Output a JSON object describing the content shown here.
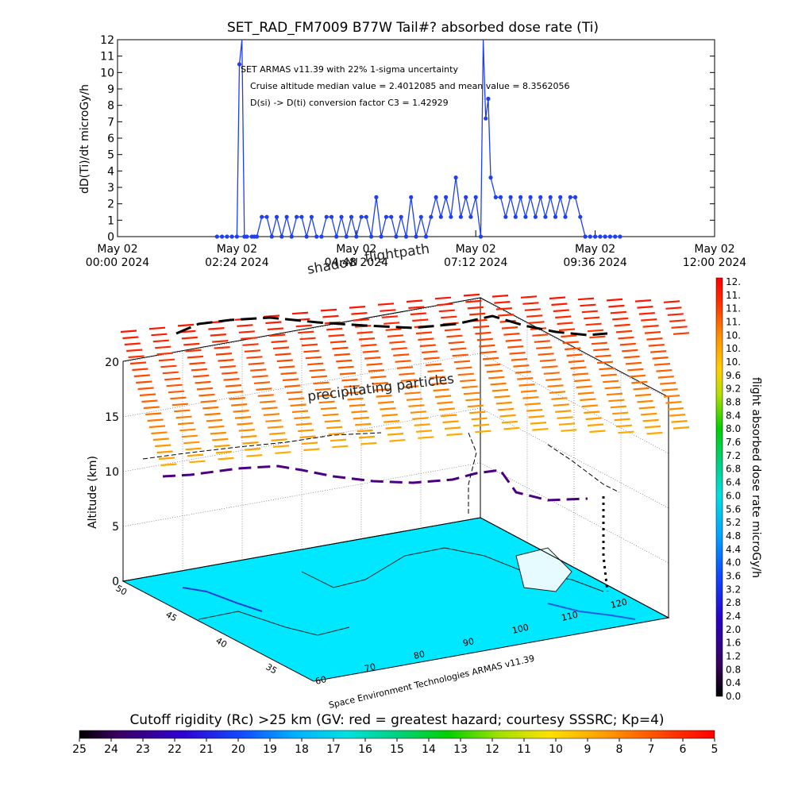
{
  "chart_data": [
    {
      "type": "line",
      "title": "SET_RAD_FM7009  B77W Tail#? absorbed dose rate (Ti)",
      "ylabel": "dD(Ti)/dt microGy/h",
      "ylim": [
        0,
        12
      ],
      "yticks": [
        "0",
        "1",
        "2",
        "3",
        "4",
        "5",
        "6",
        "7",
        "8",
        "9",
        "10",
        "11",
        "12"
      ],
      "xlim_hours": [
        0,
        12
      ],
      "xticks": [
        {
          "line1": "May 02",
          "line2": "00:00 2024"
        },
        {
          "line1": "May 02",
          "line2": "02:24 2024"
        },
        {
          "line1": "May 02",
          "line2": "04:48 2024"
        },
        {
          "line1": "May 02",
          "line2": "07:12 2024"
        },
        {
          "line1": "May 02",
          "line2": "09:36 2024"
        },
        {
          "line1": "May 02",
          "line2": "12:00 2024"
        }
      ],
      "annotations": [
        "SET ARMAS v11.39 with 22% 1-sigma uncertainty",
        "Cruise altitude median value = 2.4012085 and mean value = 8.3562056",
        "D(si) -> D(ti) conversion factor C3 = 1.42929"
      ],
      "series": [
        {
          "color": "#1f3ff0",
          "x_hours": [
            2.0,
            2.1,
            2.2,
            2.3,
            2.4,
            2.45,
            2.5,
            2.55,
            2.6,
            2.7,
            2.75,
            2.8,
            2.9,
            3.0,
            3.1,
            3.2,
            3.3,
            3.4,
            3.5,
            3.6,
            3.7,
            3.8,
            3.9,
            4.0,
            4.1,
            4.2,
            4.3,
            4.4,
            4.5,
            4.6,
            4.7,
            4.8,
            4.9,
            5.0,
            5.1,
            5.2,
            5.3,
            5.4,
            5.5,
            5.6,
            5.7,
            5.8,
            5.9,
            6.0,
            6.1,
            6.2,
            6.3,
            6.4,
            6.5,
            6.6,
            6.7,
            6.8,
            6.9,
            7.0,
            7.1,
            7.2,
            7.3,
            7.35,
            7.4,
            7.45,
            7.5,
            7.6,
            7.7,
            7.8,
            7.9,
            8.0,
            8.1,
            8.2,
            8.3,
            8.4,
            8.5,
            8.6,
            8.7,
            8.8,
            8.9,
            9.0,
            9.1,
            9.2,
            9.3,
            9.4,
            9.5,
            9.6,
            9.7,
            9.8,
            9.9,
            10.0,
            10.1
          ],
          "values": [
            0,
            0,
            0,
            0,
            0,
            10.5,
            12,
            0,
            0,
            0,
            0,
            0,
            1.2,
            1.2,
            0,
            1.2,
            0,
            1.2,
            0,
            1.2,
            1.2,
            0,
            1.2,
            0,
            0,
            1.2,
            1.2,
            0,
            1.2,
            0,
            1.2,
            0,
            1.2,
            1.2,
            0,
            2.4,
            0,
            1.2,
            1.2,
            0,
            1.2,
            0,
            2.4,
            0,
            1.2,
            0,
            1.2,
            2.4,
            1.2,
            2.4,
            1.2,
            3.6,
            1.2,
            2.4,
            1.2,
            2.4,
            0,
            12,
            7.2,
            8.4,
            3.6,
            2.4,
            2.4,
            1.2,
            2.4,
            1.2,
            2.4,
            1.2,
            2.4,
            1.2,
            2.4,
            1.2,
            2.4,
            1.2,
            2.4,
            1.2,
            2.4,
            2.4,
            1.2,
            0,
            0,
            0,
            0,
            0,
            0,
            0,
            0
          ]
        }
      ]
    },
    {
      "type": "3d-surface",
      "zlabel": "Altitude (km)",
      "zticks": [
        "0",
        "5",
        "10",
        "15",
        "20"
      ],
      "lat_ticks": [
        "50",
        "45",
        "40",
        "35"
      ],
      "lon_ticks": [
        "60",
        "70",
        "80",
        "90",
        "100",
        "110",
        "120"
      ],
      "labels": [
        "shadow",
        "flightpath",
        "precipitating particles",
        "Space Environment Technologies ARMAS v11.39"
      ],
      "colorbar": {
        "label": "flight absorbed dose rate microGy/h",
        "ticks": [
          "12.",
          "11.",
          "11.",
          "11.",
          "10.",
          "10.",
          "10.",
          "9.6",
          "9.2",
          "8.8",
          "8.4",
          "8.0",
          "7.6",
          "7.2",
          "6.8",
          "6.4",
          "6.0",
          "5.6",
          "5.2",
          "4.8",
          "4.4",
          "4.0",
          "3.6",
          "3.2",
          "2.8",
          "2.4",
          "2.0",
          "1.6",
          "1.2",
          "0.8",
          "0.4",
          "0.0"
        ]
      },
      "hcolorbar": {
        "label": "Cutoff rigidity (Rc) >25 km (GV: red = greatest hazard; courtesy SSSRC; Kp=4)",
        "ticks": [
          "25",
          "24",
          "23",
          "22",
          "21",
          "20",
          "19",
          "18",
          "17",
          "16",
          "15",
          "14",
          "13",
          "12",
          "11",
          "10",
          "9",
          "8",
          "7",
          "6",
          "5"
        ]
      },
      "colors": {
        "ground": "#00e8ff",
        "flightpath": "#4b0082",
        "precip_top": "#ff1a00",
        "precip_bottom": "#ffa500"
      }
    }
  ]
}
